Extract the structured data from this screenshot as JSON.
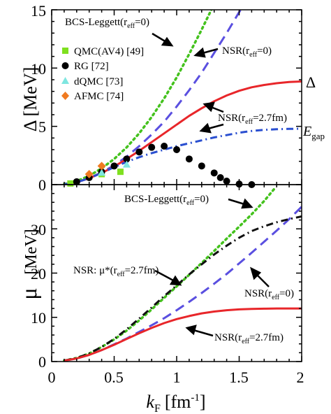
{
  "chart_data": [
    {
      "type": "line",
      "panel": "top",
      "ylabel": "Δ [MeV]",
      "xlim": [
        0,
        2
      ],
      "ylim": [
        0,
        15
      ],
      "yticks": [
        "0",
        "5",
        "10",
        "15"
      ],
      "grid": false,
      "legend_position": "top-left",
      "series": [
        {
          "name": "BCS-Leggett(r_eff=0)",
          "style": "dotted",
          "color": "#44c21d",
          "x": [
            0.1,
            0.2,
            0.3,
            0.4,
            0.5,
            0.6,
            0.7,
            0.8,
            0.9,
            1.0,
            1.1,
            1.2,
            1.3,
            1.35
          ],
          "y": [
            0.05,
            0.3,
            0.75,
            1.4,
            2.2,
            3.2,
            4.4,
            5.8,
            7.4,
            9.2,
            11.2,
            13.3,
            15.5,
            16.0
          ]
        },
        {
          "name": "NSR(r_eff=0)",
          "style": "dashed",
          "color": "#5a4fe0",
          "x": [
            0.1,
            0.2,
            0.3,
            0.4,
            0.5,
            0.6,
            0.7,
            0.8,
            0.9,
            1.0,
            1.1,
            1.2,
            1.3,
            1.4,
            1.5,
            1.58
          ],
          "y": [
            0.03,
            0.2,
            0.55,
            1.05,
            1.65,
            2.4,
            3.3,
            4.3,
            5.4,
            6.7,
            8.1,
            9.6,
            11.3,
            13.0,
            14.8,
            16.0
          ]
        },
        {
          "name": "NSR(r_eff=2.7fm)",
          "style": "solid",
          "color": "#e8262a",
          "x": [
            0.1,
            0.2,
            0.3,
            0.4,
            0.5,
            0.6,
            0.7,
            0.8,
            0.9,
            1.0,
            1.1,
            1.2,
            1.3,
            1.4,
            1.5,
            1.6,
            1.7,
            1.8,
            1.9,
            2.0
          ],
          "y": [
            0.03,
            0.2,
            0.55,
            1.0,
            1.55,
            2.2,
            2.9,
            3.65,
            4.4,
            5.15,
            5.9,
            6.55,
            7.15,
            7.65,
            8.05,
            8.35,
            8.55,
            8.7,
            8.8,
            8.85
          ]
        },
        {
          "name": "E_gap",
          "style": "dashdot",
          "color": "#2a4fd0",
          "x": [
            0.1,
            0.2,
            0.3,
            0.4,
            0.5,
            0.6,
            0.7,
            0.8,
            0.9,
            1.0,
            1.1,
            1.2,
            1.3,
            1.4,
            1.5,
            1.6,
            1.7,
            1.8,
            1.9,
            2.0
          ],
          "y": [
            0.03,
            0.2,
            0.55,
            1.0,
            1.5,
            1.95,
            2.35,
            2.7,
            3.0,
            3.3,
            3.55,
            3.8,
            4.05,
            4.25,
            4.45,
            4.6,
            4.7,
            4.75,
            4.78,
            4.8
          ]
        },
        {
          "name": "QMC(AV4) [49]",
          "style": "marker-square",
          "color": "#7fe01f",
          "x": [
            0.15,
            0.4,
            0.55
          ],
          "y": [
            0.1,
            0.9,
            1.1
          ]
        },
        {
          "name": "RG [72]",
          "style": "marker-circle",
          "color": "#000000",
          "x": [
            0.2,
            0.3,
            0.4,
            0.5,
            0.6,
            0.7,
            0.8,
            0.9,
            1.0,
            1.1,
            1.2,
            1.3,
            1.35,
            1.4,
            1.5,
            1.6
          ],
          "y": [
            0.25,
            0.6,
            1.1,
            1.6,
            2.2,
            2.8,
            3.2,
            3.3,
            3.0,
            2.2,
            1.6,
            1.0,
            0.6,
            0.3,
            0.05,
            0.0
          ]
        },
        {
          "name": "dQMC [73]",
          "style": "marker-triangle",
          "color": "#7fe6e0",
          "x": [
            0.4,
            0.6
          ],
          "y": [
            1.0,
            1.7
          ]
        },
        {
          "name": "AFMC [74]",
          "style": "marker-diamond",
          "color": "#f07a20",
          "x": [
            0.3,
            0.4
          ],
          "y": [
            0.9,
            1.6
          ]
        }
      ],
      "annotations": {
        "bcs": "BCS-Leggett(r",
        "bcs_sub": "eff",
        "bcs_tail": "=0)",
        "nsr0": "NSR(r",
        "nsr0_sub": "eff",
        "nsr0_tail": "=0)",
        "nsr27": "NSR(r",
        "nsr27_sub": "eff",
        "nsr27_tail": "=2.7fm)",
        "delta": "Δ",
        "egap": "E",
        "egap_sub": "gap"
      }
    },
    {
      "type": "line",
      "panel": "bottom",
      "ylabel": "μ [MeV]",
      "xlabel": "k_F [fm^-1]",
      "xlim": [
        0,
        2
      ],
      "ylim": [
        0,
        40
      ],
      "xticks": [
        "0",
        "0.5",
        "1",
        "1.5",
        "2"
      ],
      "yticks": [
        "0",
        "10",
        "20",
        "30"
      ],
      "grid": false,
      "series": [
        {
          "name": "BCS-Leggett(r_eff=0)",
          "style": "dotted",
          "color": "#44c21d",
          "x": [
            0.1,
            0.2,
            0.3,
            0.4,
            0.5,
            0.6,
            0.7,
            0.8,
            0.9,
            1.0,
            1.1,
            1.2,
            1.3,
            1.4,
            1.5,
            1.6,
            1.7,
            1.78
          ],
          "y": [
            0.2,
            0.8,
            1.8,
            3.3,
            5.0,
            7.0,
            9.3,
            11.8,
            14.4,
            17.0,
            19.6,
            22.3,
            25.0,
            27.8,
            30.5,
            33.3,
            36.3,
            39.0
          ]
        },
        {
          "name": "NSR(r_eff=0)",
          "style": "dashed",
          "color": "#5a4fe0",
          "x": [
            0.1,
            0.2,
            0.3,
            0.4,
            0.5,
            0.6,
            0.7,
            0.8,
            0.9,
            1.0,
            1.1,
            1.2,
            1.3,
            1.4,
            1.5,
            1.6,
            1.7,
            1.8,
            1.9,
            2.0
          ],
          "y": [
            0.2,
            0.7,
            1.5,
            2.6,
            3.9,
            5.2,
            6.7,
            8.2,
            9.8,
            11.6,
            13.5,
            15.5,
            17.6,
            19.8,
            22.2,
            24.6,
            27.1,
            29.6,
            32.2,
            35.0
          ]
        },
        {
          "name": "NSR: μ*(r_eff=2.7fm)",
          "style": "dashdot",
          "color": "#111111",
          "x": [
            0.1,
            0.2,
            0.3,
            0.4,
            0.5,
            0.6,
            0.7,
            0.8,
            0.9,
            1.0,
            1.1,
            1.2,
            1.3,
            1.4,
            1.5,
            1.6,
            1.7,
            1.8,
            1.9,
            2.0
          ],
          "y": [
            0.2,
            0.8,
            1.8,
            3.3,
            5.1,
            7.3,
            9.7,
            12.2,
            14.8,
            17.2,
            19.7,
            22.0,
            24.2,
            26.2,
            28.0,
            29.5,
            30.6,
            31.5,
            32.2,
            32.8
          ]
        },
        {
          "name": "NSR(r_eff=2.7fm)",
          "style": "solid",
          "color": "#e8262a",
          "x": [
            0.1,
            0.2,
            0.3,
            0.4,
            0.5,
            0.6,
            0.7,
            0.8,
            0.9,
            1.0,
            1.1,
            1.2,
            1.3,
            1.4,
            1.5,
            1.6,
            1.7,
            1.8,
            1.9,
            2.0
          ],
          "y": [
            0.2,
            0.7,
            1.5,
            2.6,
            3.8,
            5.1,
            6.4,
            7.6,
            8.7,
            9.6,
            10.3,
            10.9,
            11.3,
            11.6,
            11.8,
            11.9,
            11.95,
            12.0,
            12.0,
            12.0
          ]
        }
      ],
      "annotations": {
        "bcs": "BCS-Leggett(r",
        "bcs_sub": "eff",
        "bcs_tail": "=0)",
        "nsrmu": "NSR: μ*(r",
        "nsrmu_sub": "eff",
        "nsrmu_tail": "=2.7fm)",
        "nsr0": "NSR(r",
        "nsr0_sub": "eff",
        "nsr0_tail": "=0)",
        "nsr27": "NSR(r",
        "nsr27_sub": "eff",
        "nsr27_tail": "=2.7fm)"
      }
    }
  ],
  "labels": {
    "top_y": "Δ  [MeV]",
    "bottom_y": "μ",
    "bottom_y_unit": "[MeV]",
    "x_main": "k",
    "x_sub": "F",
    "x_unit": "[fm",
    "x_sup": "-1",
    "x_close": "]"
  }
}
